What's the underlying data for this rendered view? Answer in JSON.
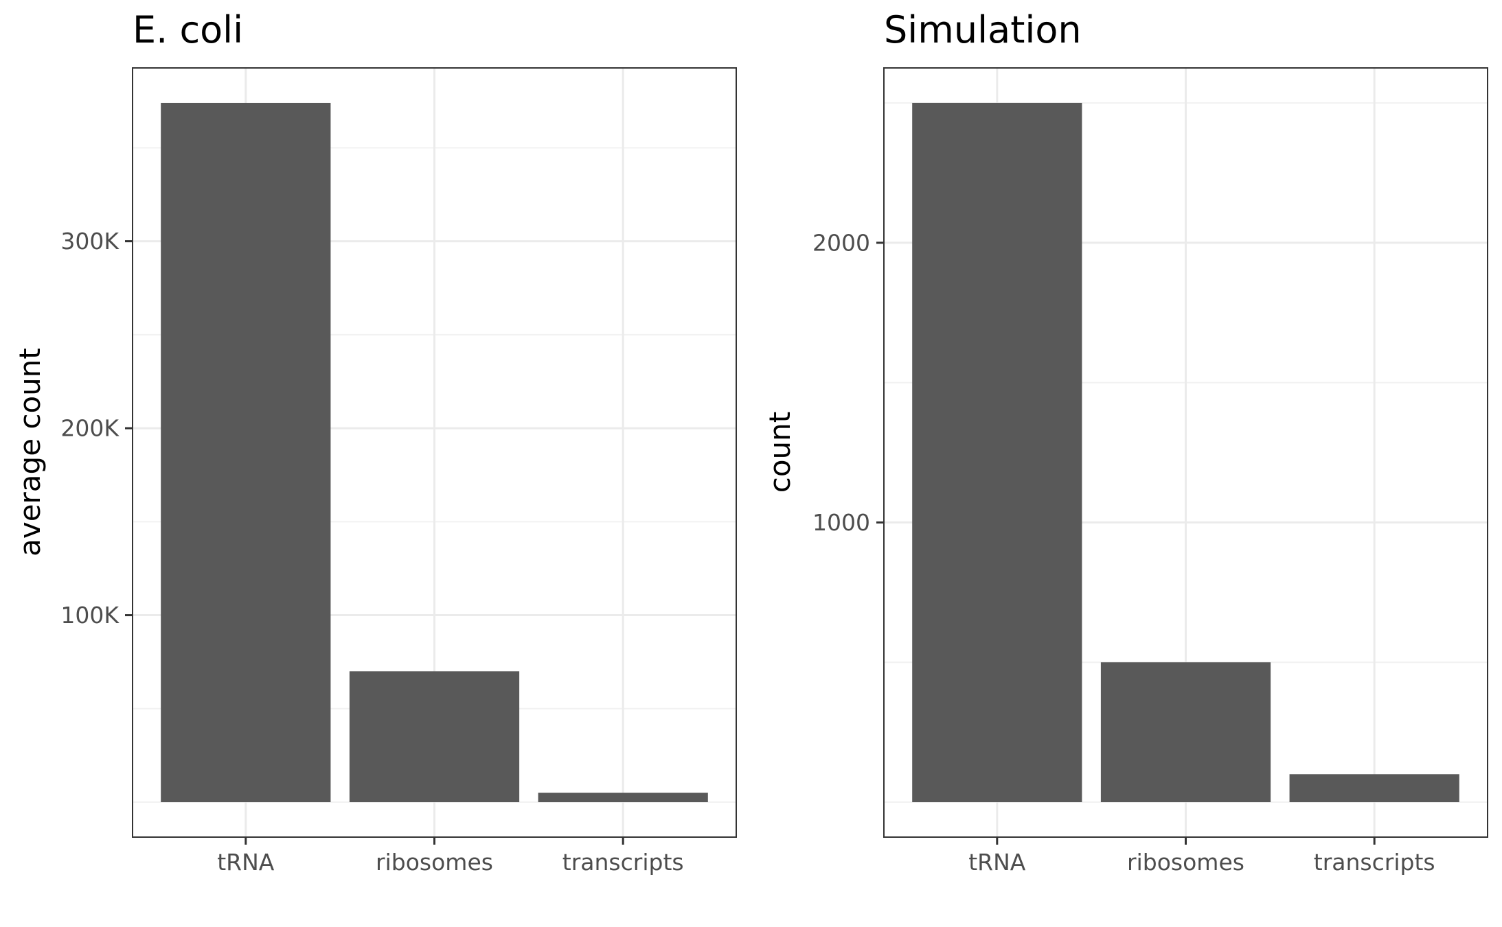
{
  "colors": {
    "bar": "#595959",
    "grid_major": "#ebebeb",
    "grid_minor": "#f2f2f2",
    "panel_border": "#333333",
    "tick_text": "#4d4d4d",
    "background": "#ffffff"
  },
  "chart_data": [
    {
      "type": "bar",
      "title": "E. coli",
      "xlabel": "",
      "ylabel": "average count",
      "categories": [
        "tRNA",
        "ribosomes",
        "transcripts"
      ],
      "values": [
        374000,
        70000,
        5000
      ],
      "ylim": [
        -18700,
        392700
      ],
      "yticks": [
        100000,
        200000,
        300000
      ],
      "ytick_labels": [
        "100K",
        "200K",
        "300K"
      ],
      "yminor": [
        0,
        50000,
        150000,
        250000,
        350000
      ],
      "grid": true
    },
    {
      "type": "bar",
      "title": "Simulation",
      "xlabel": "",
      "ylabel": "count",
      "categories": [
        "tRNA",
        "ribosomes",
        "transcripts"
      ],
      "values": [
        2500,
        500,
        100
      ],
      "ylim": [
        -125,
        2625
      ],
      "yticks": [
        1000,
        2000
      ],
      "ytick_labels": [
        "1000",
        "2000"
      ],
      "yminor": [
        0,
        500,
        1500,
        2500
      ],
      "grid": true
    }
  ]
}
